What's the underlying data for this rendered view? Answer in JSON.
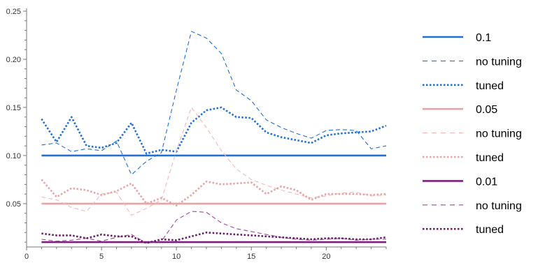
{
  "chart_data": {
    "type": "line",
    "title": "",
    "xlabel": "",
    "ylabel": "",
    "xlim": [
      0,
      24
    ],
    "ylim": [
      0.005,
      0.25
    ],
    "x_ticks": [
      0,
      5,
      10,
      15,
      20
    ],
    "y_ticks": [
      0.05,
      0.1,
      0.15,
      0.2,
      0.25
    ],
    "y_tick_labels": [
      "0.05",
      "0.10",
      "0.15",
      "0.20",
      "0.25"
    ],
    "grid": false,
    "legend_position": "right",
    "x": [
      1,
      2,
      3,
      4,
      5,
      6,
      7,
      8,
      9,
      10,
      11,
      12,
      13,
      14,
      15,
      16,
      17,
      18,
      19,
      20,
      21,
      22,
      23,
      24
    ],
    "series": [
      {
        "name": "0.1",
        "group": "0.1",
        "style": "solid",
        "color": "#1f6fd6",
        "values": [
          0.1,
          0.1,
          0.1,
          0.1,
          0.1,
          0.1,
          0.1,
          0.1,
          0.1,
          0.1,
          0.1,
          0.1,
          0.1,
          0.1,
          0.1,
          0.1,
          0.1,
          0.1,
          0.1,
          0.1,
          0.1,
          0.1,
          0.1,
          0.1
        ]
      },
      {
        "name": "no tuning",
        "group": "0.1",
        "style": "dashed",
        "color": "#1f6fd6",
        "values": [
          0.111,
          0.113,
          0.104,
          0.107,
          0.105,
          0.115,
          0.08,
          0.094,
          0.103,
          0.168,
          0.229,
          0.222,
          0.206,
          0.168,
          0.157,
          0.137,
          0.129,
          0.123,
          0.118,
          0.126,
          0.127,
          0.126,
          0.107,
          0.11
        ]
      },
      {
        "name": "tuned",
        "group": "0.1",
        "style": "dotted",
        "color": "#1f6fd6",
        "values": [
          0.138,
          0.114,
          0.14,
          0.11,
          0.108,
          0.113,
          0.134,
          0.102,
          0.106,
          0.104,
          0.134,
          0.147,
          0.15,
          0.14,
          0.139,
          0.124,
          0.119,
          0.116,
          0.113,
          0.121,
          0.123,
          0.124,
          0.125,
          0.131
        ]
      },
      {
        "name": "0.05",
        "group": "0.05",
        "style": "solid",
        "color": "#e8a3a3",
        "values": [
          0.05,
          0.05,
          0.05,
          0.05,
          0.05,
          0.05,
          0.05,
          0.05,
          0.05,
          0.05,
          0.05,
          0.05,
          0.05,
          0.05,
          0.05,
          0.05,
          0.05,
          0.05,
          0.05,
          0.05,
          0.05,
          0.05,
          0.05,
          0.05
        ]
      },
      {
        "name": "no tuning",
        "group": "0.05",
        "style": "dashed",
        "color": "#f0b8b8",
        "values": [
          0.057,
          0.054,
          0.046,
          0.042,
          0.06,
          0.062,
          0.038,
          0.045,
          0.054,
          0.105,
          0.15,
          0.129,
          0.105,
          0.086,
          0.075,
          0.069,
          0.064,
          0.06,
          0.056,
          0.058,
          0.061,
          0.062,
          0.058,
          0.059
        ]
      },
      {
        "name": "tuned",
        "group": "0.05",
        "style": "dotted",
        "color": "#e8a3a3",
        "values": [
          0.075,
          0.057,
          0.066,
          0.064,
          0.059,
          0.063,
          0.071,
          0.05,
          0.056,
          0.048,
          0.059,
          0.073,
          0.07,
          0.071,
          0.072,
          0.06,
          0.068,
          0.064,
          0.054,
          0.06,
          0.06,
          0.06,
          0.059,
          0.06
        ]
      },
      {
        "name": "0.01",
        "group": "0.01",
        "style": "solid",
        "color": "#7a1f7a",
        "values": [
          0.01,
          0.01,
          0.01,
          0.01,
          0.01,
          0.01,
          0.01,
          0.01,
          0.01,
          0.01,
          0.01,
          0.01,
          0.01,
          0.01,
          0.01,
          0.01,
          0.01,
          0.01,
          0.01,
          0.01,
          0.01,
          0.01,
          0.01,
          0.01
        ]
      },
      {
        "name": "no tuning",
        "group": "0.01",
        "style": "dashed",
        "color": "#9a4a9a",
        "values": [
          0.013,
          0.011,
          0.012,
          0.014,
          0.011,
          0.015,
          0.018,
          0.009,
          0.011,
          0.033,
          0.042,
          0.041,
          0.03,
          0.024,
          0.021,
          0.018,
          0.015,
          0.013,
          0.012,
          0.013,
          0.014,
          0.012,
          0.013,
          0.013
        ]
      },
      {
        "name": "tuned",
        "group": "0.01",
        "style": "dotted",
        "color": "#6a1a6a",
        "values": [
          0.019,
          0.017,
          0.017,
          0.014,
          0.018,
          0.016,
          0.016,
          0.009,
          0.013,
          0.012,
          0.016,
          0.02,
          0.019,
          0.018,
          0.017,
          0.016,
          0.015,
          0.014,
          0.013,
          0.014,
          0.014,
          0.013,
          0.013,
          0.015
        ]
      }
    ]
  }
}
